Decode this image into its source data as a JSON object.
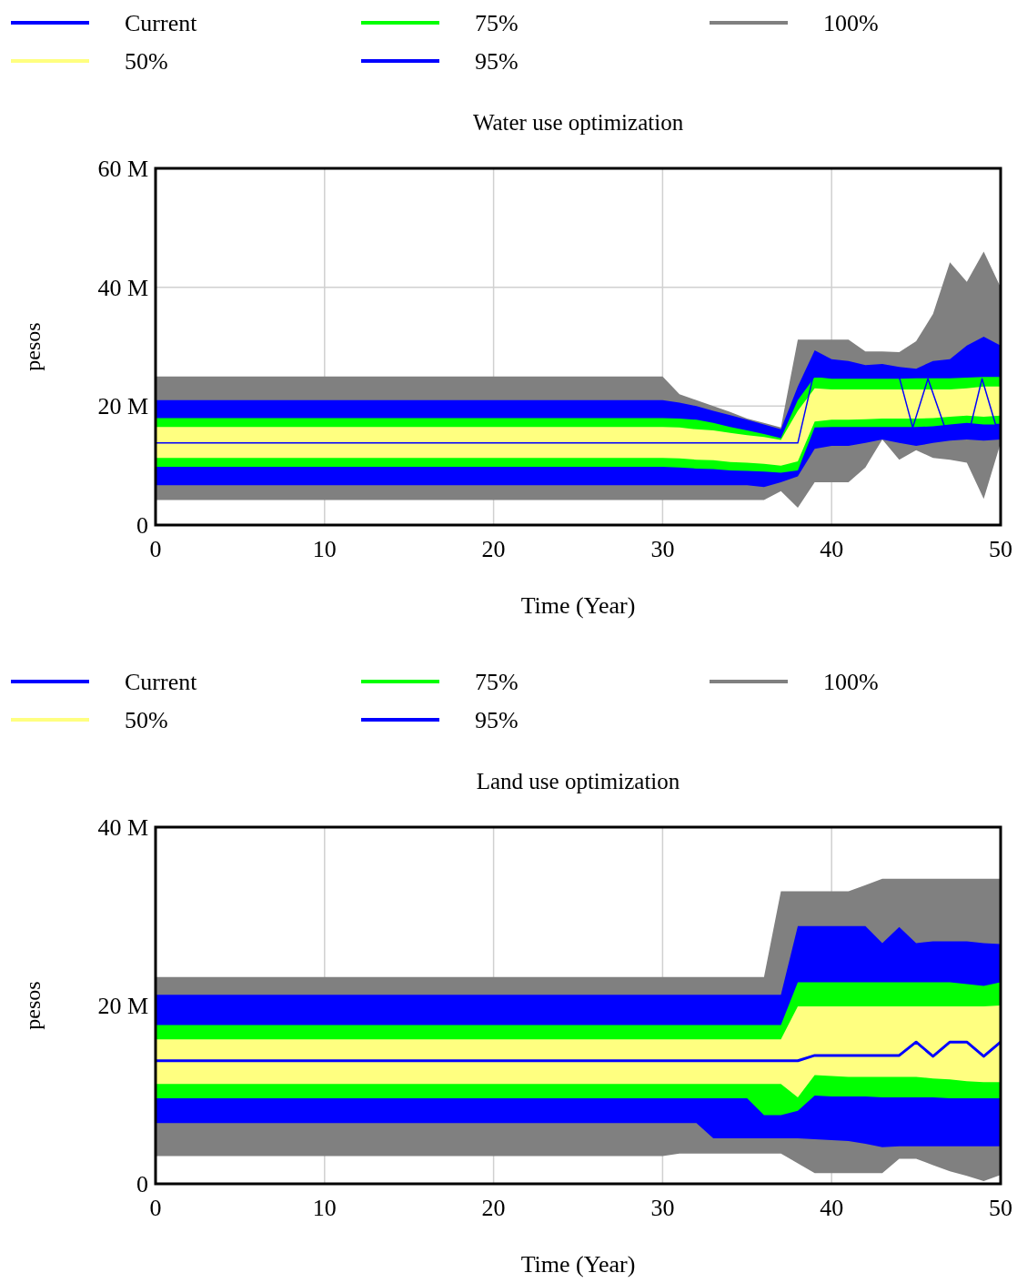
{
  "chart_data": [
    {
      "type": "area",
      "title": "Water use optimization",
      "xlabel": "Time (Year)",
      "ylabel": "pesos",
      "legend": "top",
      "grid": true,
      "xlim": [
        0,
        50
      ],
      "xticks": [
        0,
        10,
        20,
        30,
        40,
        50
      ],
      "ylim": [
        0,
        60
      ],
      "yticks": [
        0,
        {
          "value": 20,
          "label": "20 M"
        },
        {
          "value": 40,
          "label": "40 M"
        },
        {
          "value": 60,
          "label": "60 M"
        }
      ],
      "x": [
        0,
        30,
        31,
        32,
        33,
        34,
        35,
        36,
        37,
        38,
        39,
        40,
        41,
        42,
        43,
        44,
        45,
        46,
        47,
        48,
        49,
        50
      ],
      "series": [
        {
          "name": "Current",
          "type": "line",
          "color": "#0000ff",
          "x": [
            0,
            38,
            38.9,
            44,
            44.8,
            45.7,
            46.7,
            48.2,
            48.9,
            49.7,
            50
          ],
          "values": [
            13.8,
            13.8,
            24.9,
            24.9,
            16.4,
            24.6,
            16.4,
            16.4,
            24.6,
            16.9,
            16.9
          ]
        },
        {
          "name": "50%",
          "color": "#ffff80",
          "values": [
            null,
            null,
            null,
            null,
            null,
            null,
            null,
            null,
            null,
            null,
            null,
            null,
            null,
            null,
            null,
            null,
            null,
            null,
            null,
            null,
            null,
            null
          ],
          "lower": [
            11.3,
            11.3,
            11.2,
            11,
            10.9,
            10.6,
            10.5,
            10.3,
            10,
            10.7,
            17.4,
            17.7,
            17.7,
            17.8,
            17.9,
            17.9,
            17.9,
            18,
            18.2,
            18.4,
            18.2,
            18.4
          ],
          "upper": [
            16.5,
            16.5,
            16.4,
            16.1,
            15.9,
            15.5,
            15.1,
            14.8,
            14.3,
            19.2,
            23,
            22.8,
            22.8,
            22.8,
            22.8,
            22.8,
            22.8,
            22.8,
            22.8,
            23,
            23.3,
            23.3
          ]
        },
        {
          "name": "75%",
          "color": "#00ff00",
          "values": [
            null,
            null,
            null,
            null,
            null,
            null,
            null,
            null,
            null,
            null,
            null,
            null,
            null,
            null,
            null,
            null,
            null,
            null,
            null,
            null,
            null,
            null
          ],
          "lower": [
            9.8,
            9.8,
            9.7,
            9.5,
            9.4,
            9.2,
            9.1,
            9,
            8.8,
            9.2,
            16.4,
            16.5,
            16.5,
            16.5,
            16.5,
            16.5,
            16.5,
            16.6,
            16.9,
            17.2,
            16.9,
            16.9
          ],
          "upper": [
            18,
            18,
            17.9,
            17.7,
            17.2,
            16.5,
            15.9,
            15.3,
            14.6,
            21,
            24.9,
            24.6,
            24.6,
            24.6,
            24.6,
            24.6,
            24.7,
            24.7,
            24.7,
            24.8,
            24.9,
            24.9
          ]
        },
        {
          "name": "95%",
          "color": "#0000ff",
          "values": [
            null,
            null,
            null,
            null,
            null,
            null,
            null,
            null,
            null,
            null,
            null,
            null,
            null,
            null,
            null,
            null,
            null,
            null,
            null,
            null,
            null,
            null
          ],
          "lower": [
            6.7,
            6.7,
            6.7,
            6.7,
            6.7,
            6.7,
            6.7,
            6.4,
            7.2,
            8.2,
            12.8,
            13.3,
            13.3,
            13.8,
            14.4,
            13.8,
            13.3,
            13.8,
            14.2,
            14.4,
            14.2,
            14.4
          ],
          "upper": [
            21,
            21,
            20.6,
            20,
            19.2,
            18.5,
            17.7,
            16.9,
            16.1,
            23.3,
            29.4,
            27.9,
            27.6,
            26.9,
            27.1,
            26.6,
            26.3,
            27.6,
            27.9,
            30.2,
            31.7,
            30.2
          ]
        },
        {
          "name": "100%",
          "color": "#808080",
          "values": [
            null,
            null,
            null,
            null,
            null,
            null,
            null,
            null,
            null,
            null,
            null,
            null,
            null,
            null,
            null,
            null,
            null,
            null,
            null,
            null,
            null,
            null
          ],
          "lower": [
            4.2,
            4.2,
            4.2,
            4.2,
            4.2,
            4.2,
            4.2,
            4.2,
            5.7,
            2.9,
            7.2,
            7.2,
            7.2,
            9.7,
            14.4,
            11,
            12.6,
            11.3,
            11,
            10.5,
            4.4,
            13.8
          ],
          "upper": [
            25,
            25,
            22,
            21,
            20,
            19,
            17.9,
            17.2,
            16.4,
            31.2,
            31.2,
            31.2,
            31.2,
            29.2,
            29.2,
            29.1,
            30.9,
            35.5,
            44.2,
            40.9,
            46,
            40
          ]
        }
      ]
    },
    {
      "type": "area",
      "title": "Land use optimization",
      "xlabel": "Time (Year)",
      "ylabel": "pesos",
      "legend": "top",
      "grid": true,
      "xlim": [
        0,
        50
      ],
      "xticks": [
        0,
        10,
        20,
        30,
        40,
        50
      ],
      "ylim": [
        0,
        40
      ],
      "yticks": [
        0,
        {
          "value": 20,
          "label": "20 M"
        },
        {
          "value": 40,
          "label": "40 M"
        }
      ],
      "x": [
        0,
        30,
        31,
        32,
        33,
        34,
        35,
        36,
        37,
        38,
        39,
        40,
        41,
        42,
        43,
        44,
        45,
        46,
        47,
        48,
        49,
        50
      ],
      "series": [
        {
          "name": "Current",
          "type": "line",
          "color": "#0000ff",
          "values": [
            13.8,
            13.8,
            13.8,
            13.8,
            13.8,
            13.8,
            13.8,
            13.8,
            13.8,
            13.8,
            14.4,
            14.4,
            14.4,
            14.4,
            14.4,
            14.4,
            15.9,
            14.3,
            15.9,
            15.9,
            14.3,
            15.9
          ]
        },
        {
          "name": "50%",
          "color": "#ffff80",
          "values": [
            null,
            null,
            null,
            null,
            null,
            null,
            null,
            null,
            null,
            null,
            null,
            null,
            null,
            null,
            null,
            null,
            null,
            null,
            null,
            null,
            null,
            null
          ],
          "lower": [
            11.2,
            11.2,
            11.2,
            11.2,
            11.2,
            11.2,
            11.2,
            11.2,
            11.2,
            9.7,
            12.2,
            12.1,
            12,
            12,
            12,
            12,
            12,
            11.8,
            11.7,
            11.5,
            11.4,
            11.4
          ],
          "upper": [
            16.2,
            16.2,
            16.2,
            16.2,
            16.2,
            16.2,
            16.2,
            16.2,
            16.2,
            19.9,
            19.9,
            19.9,
            19.9,
            19.9,
            19.9,
            19.9,
            19.9,
            19.9,
            19.9,
            19.9,
            19.9,
            20
          ]
        },
        {
          "name": "75%",
          "color": "#00ff00",
          "values": [
            null,
            null,
            null,
            null,
            null,
            null,
            null,
            null,
            null,
            null,
            null,
            null,
            null,
            null,
            null,
            null,
            null,
            null,
            null,
            null,
            null,
            null
          ],
          "lower": [
            9.6,
            9.6,
            9.6,
            9.6,
            9.6,
            9.6,
            9.6,
            7.7,
            7.7,
            8.2,
            9.9,
            9.8,
            9.8,
            9.8,
            9.7,
            9.7,
            9.7,
            9.7,
            9.6,
            9.6,
            9.6,
            9.6
          ],
          "upper": [
            17.8,
            17.8,
            17.8,
            17.8,
            17.8,
            17.8,
            17.8,
            17.8,
            17.8,
            22.6,
            22.6,
            22.6,
            22.6,
            22.6,
            22.6,
            22.6,
            22.6,
            22.6,
            22.6,
            22.4,
            22.2,
            22.6
          ]
        },
        {
          "name": "95%",
          "color": "#0000ff",
          "values": [
            null,
            null,
            null,
            null,
            null,
            null,
            null,
            null,
            null,
            null,
            null,
            null,
            null,
            null,
            null,
            null,
            null,
            null,
            null,
            null,
            null,
            null
          ],
          "lower": [
            6.8,
            6.8,
            6.8,
            6.8,
            5.1,
            5.1,
            5.1,
            5.1,
            5.1,
            5.1,
            5,
            4.9,
            4.8,
            4.5,
            4.1,
            4.2,
            4.2,
            4.2,
            4.2,
            4.2,
            4.2,
            4.2
          ],
          "upper": [
            21.2,
            21.2,
            21.2,
            21.2,
            21.2,
            21.2,
            21.2,
            21.2,
            21.2,
            28.9,
            28.9,
            28.9,
            28.9,
            28.9,
            27,
            28.8,
            27,
            27.2,
            27.2,
            27.2,
            27,
            26.9
          ]
        },
        {
          "name": "100%",
          "color": "#808080",
          "values": [
            null,
            null,
            null,
            null,
            null,
            null,
            null,
            null,
            null,
            null,
            null,
            null,
            null,
            null,
            null,
            null,
            null,
            null,
            null,
            null,
            null,
            null
          ],
          "lower": [
            3.1,
            3.1,
            3.4,
            3.4,
            3.4,
            3.4,
            3.4,
            3.4,
            3.4,
            2.3,
            1.2,
            1.2,
            1.2,
            1.2,
            1.2,
            2.8,
            2.8,
            2.1,
            1.4,
            0.9,
            0.3,
            1
          ],
          "upper": [
            23.2,
            23.2,
            23.2,
            23.2,
            23.2,
            23.2,
            23.2,
            23.2,
            32.8,
            32.8,
            32.8,
            32.8,
            32.8,
            33.5,
            34.2,
            34.2,
            34.2,
            34.2,
            34.2,
            34.2,
            34.2,
            34.2
          ]
        }
      ]
    }
  ]
}
